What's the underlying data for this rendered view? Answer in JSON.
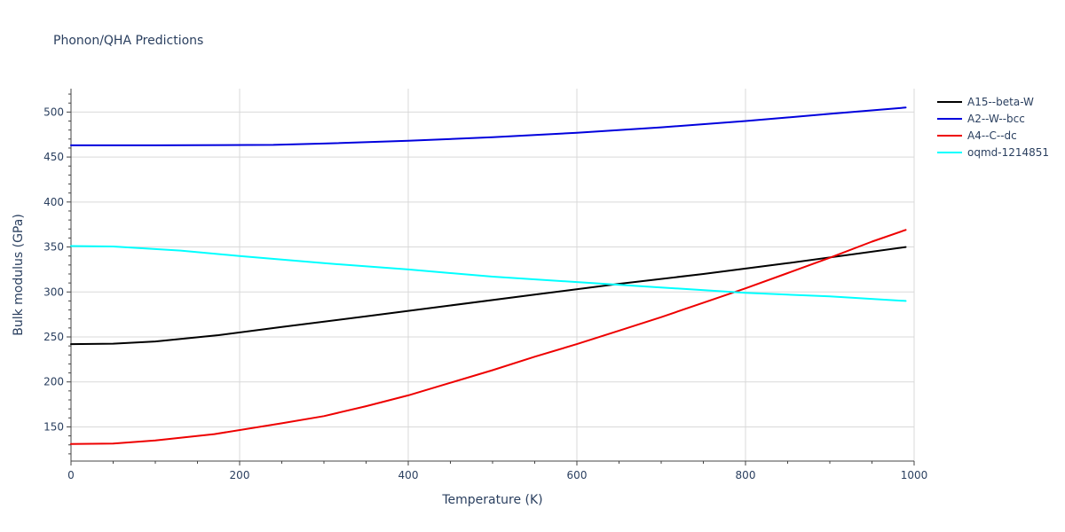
{
  "chart_data": {
    "type": "line",
    "title": "Phonon/QHA Predictions",
    "xlabel": "Temperature (K)",
    "ylabel": "Bulk modulus (GPa)",
    "xlim": [
      0,
      1000
    ],
    "ylim": [
      112,
      526
    ],
    "xticks": [
      0,
      200,
      400,
      600,
      800,
      1000
    ],
    "yticks": [
      150,
      200,
      250,
      300,
      350,
      400,
      450,
      500
    ],
    "x_minor_step": 50,
    "y_minor_step": 10,
    "grid": true,
    "legend_position": "top-right",
    "series": [
      {
        "name": "A15--beta-W",
        "color": "#000000",
        "x": [
          0,
          50,
          100,
          175,
          250,
          350,
          450,
          550,
          650,
          750,
          850,
          990
        ],
        "y": [
          242,
          242.5,
          245,
          252,
          261,
          273,
          285,
          297,
          309,
          320,
          332,
          350
        ]
      },
      {
        "name": "A2--W--bcc",
        "color": "#0000dd",
        "x": [
          0,
          100,
          240,
          300,
          400,
          500,
          600,
          700,
          800,
          900,
          990
        ],
        "y": [
          463,
          463,
          463.5,
          465,
          468,
          472,
          477,
          483,
          490,
          498,
          505
        ]
      },
      {
        "name": "A4--C--dc",
        "color": "#ee0000",
        "x": [
          0,
          50,
          100,
          170,
          250,
          300,
          350,
          400,
          450,
          500,
          550,
          600,
          650,
          700,
          750,
          800,
          850,
          900,
          950,
          990
        ],
        "y": [
          131,
          131.5,
          135,
          142,
          154,
          162,
          173,
          185,
          199,
          213,
          228,
          242,
          257,
          272,
          288,
          304,
          321,
          338,
          356,
          369
        ]
      },
      {
        "name": "oqmd-1214851",
        "color": "#00ffff",
        "x": [
          0,
          50,
          130,
          200,
          300,
          400,
          500,
          600,
          700,
          800,
          900,
          990
        ],
        "y": [
          351,
          350.5,
          346,
          340,
          332,
          325,
          317,
          311,
          305,
          299,
          295,
          290
        ]
      }
    ]
  }
}
